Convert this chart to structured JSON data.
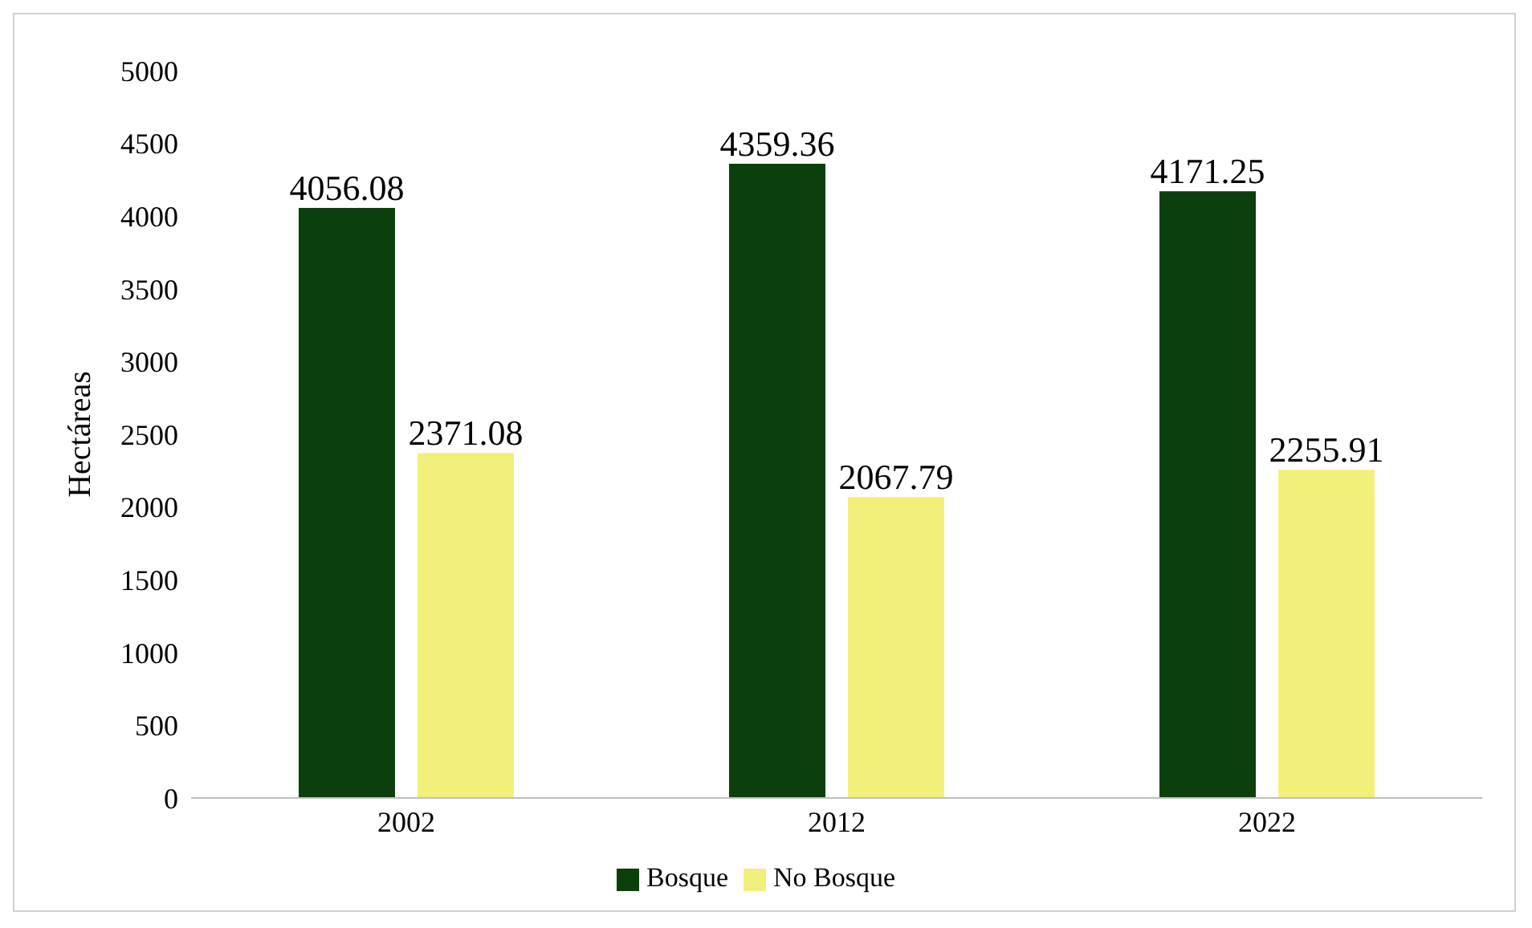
{
  "chart_data": {
    "type": "bar",
    "ylabel": "Hectáreas",
    "categories": [
      "2002",
      "2012",
      "2022"
    ],
    "series": [
      {
        "name": "Bosque",
        "color": "#0b3f0b",
        "values": [
          4056.08,
          4359.36,
          4171.25
        ]
      },
      {
        "name": "No Bosque",
        "color": "#f2f07a",
        "values": [
          2371.08,
          2067.79,
          2255.91
        ]
      }
    ],
    "ylim": [
      0,
      5000
    ],
    "yticks": [
      0,
      500,
      1000,
      1500,
      2000,
      2500,
      3000,
      3500,
      4000,
      4500,
      5000
    ],
    "grid": false,
    "legend": "bottom",
    "data_labels": true
  }
}
